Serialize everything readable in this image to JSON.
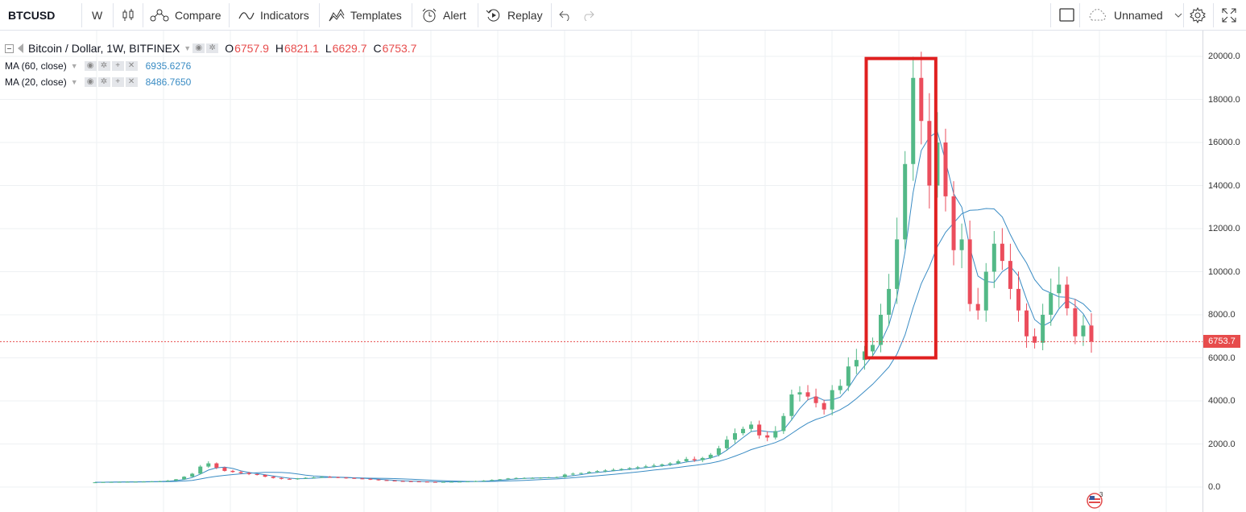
{
  "toolbar": {
    "symbol": "BTCUSD",
    "interval": "W",
    "compare": "Compare",
    "indicators": "Indicators",
    "templates": "Templates",
    "alert": "Alert",
    "replay": "Replay",
    "layout_name": "Unnamed"
  },
  "legend": {
    "title": "Bitcoin / Dollar, 1W, BITFINEX",
    "o_label": "O",
    "o_value": "6757.9",
    "h_label": "H",
    "h_value": "6821.1",
    "l_label": "L",
    "l_value": "6629.7",
    "c_label": "C",
    "c_value": "6753.7",
    "ma60_label": "MA (60, close)",
    "ma60_value": "6935.6276",
    "ma20_label": "MA (20, close)",
    "ma20_value": "8486.7650"
  },
  "price_axis": {
    "ticks": [
      "20000.0",
      "18000.0",
      "16000.0",
      "14000.0",
      "12000.0",
      "10000.0",
      "8000.0",
      "6000.0",
      "4000.0",
      "2000.0",
      "0.0"
    ],
    "tick_values": [
      20000,
      18000,
      16000,
      14000,
      12000,
      10000,
      8000,
      6000,
      4000,
      2000,
      0
    ],
    "last_price_label": "6753.7",
    "last_price": 6753.7
  },
  "flag_badge": "3",
  "colors": {
    "up": "#53b987",
    "down": "#eb4d5c",
    "ma": "#3a8cc4",
    "highlight": "#e02020",
    "price_line": "#e74c4c"
  },
  "chart_data": {
    "type": "candlestick",
    "symbol": "BTCUSD",
    "interval": "1W",
    "exchange": "BITFINEX",
    "ylim": [
      0,
      20500
    ],
    "candles_weekly_closes_approx": [
      220,
      230,
      235,
      240,
      245,
      250,
      255,
      260,
      270,
      300,
      360,
      480,
      620,
      950,
      1100,
      900,
      750,
      700,
      650,
      600,
      560,
      480,
      420,
      380,
      360,
      400,
      430,
      450,
      470,
      460,
      440,
      420,
      400,
      380,
      350,
      320,
      300,
      280,
      270,
      260,
      250,
      240,
      235,
      240,
      245,
      250,
      260,
      280,
      300,
      330,
      360,
      400,
      420,
      420,
      420,
      440,
      450,
      460,
      580,
      620,
      650,
      700,
      740,
      770,
      800,
      840,
      880,
      920,
      960,
      1000,
      1050,
      1100,
      1200,
      1300,
      1250,
      1350,
      1500,
      1800,
      2200,
      2500,
      2700,
      2900,
      2400,
      2300,
      2600,
      3300,
      4300,
      4400,
      4200,
      3900,
      3600,
      4500,
      4700,
      5600,
      5900,
      6300,
      6600,
      8000,
      9200,
      11500,
      15000,
      19000,
      17000,
      14000,
      16000,
      13500,
      11000,
      11500,
      8500,
      8200,
      10000,
      11300,
      10500,
      9200,
      8200,
      7000,
      6700,
      8000,
      9000,
      9400,
      8300,
      7000,
      7500,
      6753.7
    ],
    "ma20_last": 8486.765,
    "ma60_last": 6935.6276,
    "annotation": "highlight rectangle around Dec 2017 peak"
  }
}
